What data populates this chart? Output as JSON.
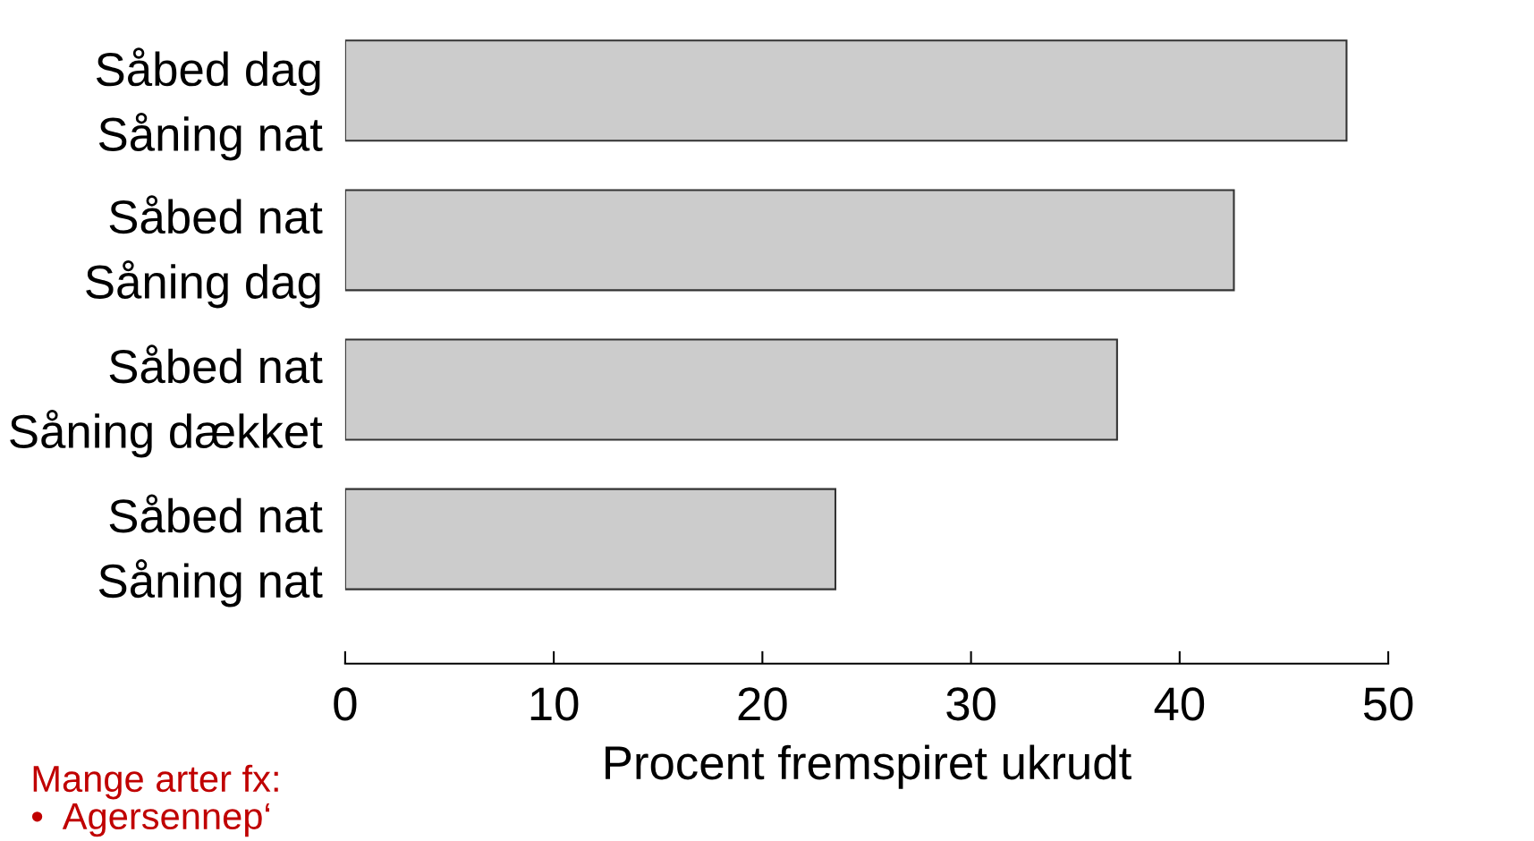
{
  "chart_data": {
    "type": "bar",
    "orientation": "horizontal",
    "xlabel": "Procent fremspiret ukrudt",
    "categories": [
      "Såbed dag\nSåning nat",
      "Såbed nat\nSåning dag",
      "Såbed nat\nSåning dækket",
      "Såbed nat\nSåning nat"
    ],
    "values": [
      48,
      42.6,
      37,
      23.5
    ],
    "color": "#cccccc",
    "xlim": [
      0,
      50
    ],
    "xticks": [
      0,
      10,
      20,
      30,
      40,
      50
    ],
    "grid": false,
    "legend": false,
    "annotations": [
      "Mange arter fx:\n•  Agersennep‘"
    ]
  }
}
